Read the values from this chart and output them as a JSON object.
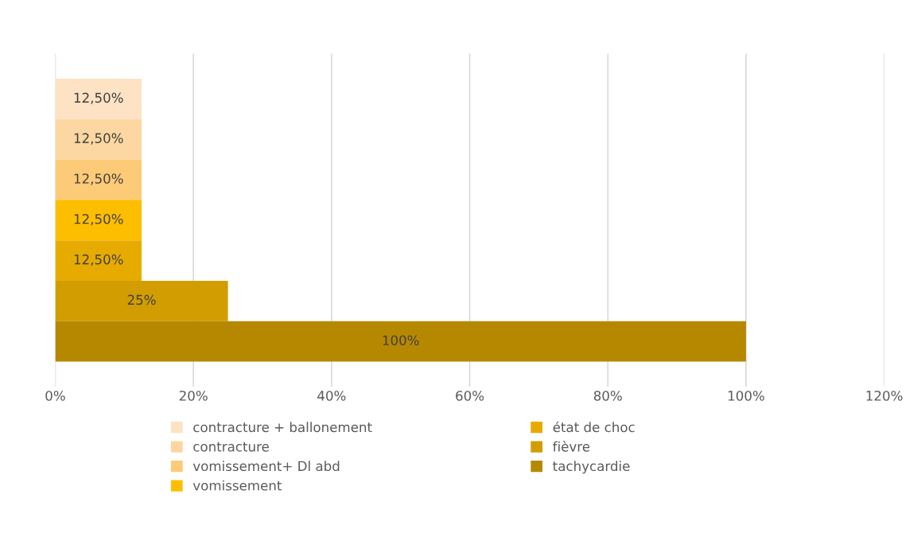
{
  "chart_data": {
    "type": "bar",
    "orientation": "horizontal",
    "categories": [
      null
    ],
    "series": [
      {
        "name": "contracture + ballonement",
        "color": "#fde2c3",
        "values": [
          12.5
        ],
        "value_labels": [
          "12,50%"
        ]
      },
      {
        "name": "contracture",
        "color": "#fdd7a1",
        "values": [
          12.5
        ],
        "value_labels": [
          "12,50%"
        ]
      },
      {
        "name": "vomissement+ Dl abd",
        "color": "#fdca77",
        "values": [
          12.5
        ],
        "value_labels": [
          "12,50%"
        ]
      },
      {
        "name": "vomissement",
        "color": "#fdbe00",
        "values": [
          12.5
        ],
        "value_labels": [
          "12,50%"
        ]
      },
      {
        "name": "état de choc",
        "color": "#e7ab00",
        "values": [
          12.5
        ],
        "value_labels": [
          "12,50%"
        ]
      },
      {
        "name": "fièvre",
        "color": "#d29d00",
        "values": [
          25
        ],
        "value_labels": [
          "25%"
        ]
      },
      {
        "name": "tachycardie",
        "color": "#b68800",
        "values": [
          100
        ],
        "value_labels": [
          "100%"
        ]
      }
    ],
    "xlim": [
      0,
      120
    ],
    "xticks": [
      {
        "value": 0,
        "label": "0%"
      },
      {
        "value": 20,
        "label": "20%"
      },
      {
        "value": 40,
        "label": "40%"
      },
      {
        "value": 60,
        "label": "60%"
      },
      {
        "value": 80,
        "label": "80%"
      },
      {
        "value": 100,
        "label": "100%"
      },
      {
        "value": 120,
        "label": "120%"
      }
    ],
    "grid": "x",
    "legend": "bottom"
  }
}
